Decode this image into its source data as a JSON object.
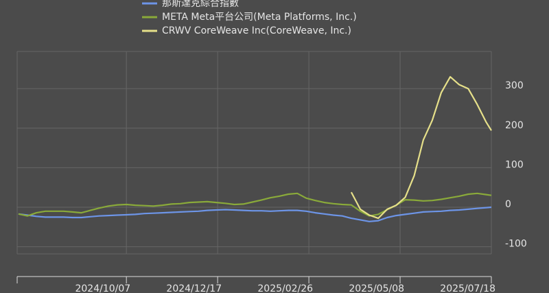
{
  "chart_data": {
    "type": "line",
    "x": [
      "2024/07/15",
      "2024/07/22",
      "2024/07/29",
      "2024/08/05",
      "2024/08/12",
      "2024/08/19",
      "2024/08/26",
      "2024/09/02",
      "2024/09/09",
      "2024/09/16",
      "2024/09/23",
      "2024/09/30",
      "2024/10/07",
      "2024/10/14",
      "2024/10/21",
      "2024/10/28",
      "2024/11/04",
      "2024/11/11",
      "2024/11/18",
      "2024/11/25",
      "2024/12/02",
      "2024/12/09",
      "2024/12/16",
      "2024/12/23",
      "2024/12/30",
      "2025/01/06",
      "2025/01/13",
      "2025/01/20",
      "2025/01/27",
      "2025/02/03",
      "2025/02/10",
      "2025/02/17",
      "2025/02/24",
      "2025/03/03",
      "2025/03/10",
      "2025/03/17",
      "2025/03/24",
      "2025/03/31",
      "2025/04/07",
      "2025/04/14",
      "2025/04/21",
      "2025/04/28",
      "2025/05/05",
      "2025/05/12",
      "2025/05/19",
      "2025/05/26",
      "2025/06/02",
      "2025/06/09",
      "2025/06/16",
      "2025/06/23",
      "2025/06/30",
      "2025/07/07",
      "2025/07/14",
      "2025/07/18"
    ],
    "series": [
      {
        "name": "那斯達克綜合指數",
        "color": "#6d95e8",
        "values": [
          -17,
          -20,
          -23,
          -25,
          -25,
          -25,
          -26,
          -26,
          -24,
          -22,
          -21,
          -20,
          -19,
          -18,
          -16,
          -15,
          -14,
          -13,
          -12,
          -11,
          -10,
          -8,
          -7,
          -6,
          -7,
          -8,
          -9,
          -9,
          -10,
          -9,
          -8,
          -8,
          -10,
          -14,
          -17,
          -20,
          -22,
          -28,
          -32,
          -36,
          -34,
          -26,
          -21,
          -18,
          -15,
          -12,
          -11,
          -10,
          -8,
          -7,
          -5,
          -3,
          -1,
          0
        ]
      },
      {
        "name": "META Meta平台公司(Meta Platforms, Inc.)",
        "color": "#8aaa3a",
        "values": [
          -17,
          -22,
          -14,
          -10,
          -10,
          -10,
          -12,
          -14,
          -8,
          -2,
          3,
          6,
          7,
          5,
          4,
          3,
          5,
          8,
          9,
          12,
          13,
          14,
          12,
          10,
          7,
          8,
          13,
          18,
          24,
          28,
          33,
          35,
          23,
          17,
          12,
          9,
          7,
          6,
          -10,
          -22,
          -18,
          -6,
          5,
          19,
          18,
          16,
          17,
          20,
          24,
          28,
          33,
          35,
          32,
          30
        ]
      },
      {
        "name": "CRWV CoreWeave Inc(CoreWeave, Inc.)",
        "color": "#e6e08a",
        "values": [
          null,
          null,
          null,
          null,
          null,
          null,
          null,
          null,
          null,
          null,
          null,
          null,
          null,
          null,
          null,
          null,
          null,
          null,
          null,
          null,
          null,
          null,
          null,
          null,
          null,
          null,
          null,
          null,
          null,
          null,
          null,
          null,
          null,
          null,
          null,
          null,
          null,
          38,
          -5,
          -20,
          -28,
          -5,
          5,
          25,
          80,
          170,
          220,
          290,
          330,
          310,
          300,
          260,
          215,
          194
        ]
      }
    ],
    "xlim": [
      "2024/07/14",
      "2025/07/18"
    ],
    "xticks": [
      "2024/10/07",
      "2024/12/17",
      "2025/02/26",
      "2025/05/08",
      "2025/07/18"
    ],
    "ylim": [
      -118,
      394
    ],
    "yticks": [
      -100,
      0,
      100,
      200,
      300
    ],
    "grid": true
  }
}
